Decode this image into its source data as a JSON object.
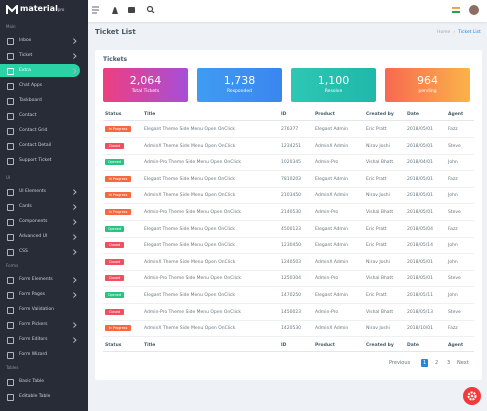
{
  "sidebar": {
    "logo": "material",
    "logo_sub": "pro",
    "active_color": "#2bd2a5",
    "sections": [
      {
        "label": "Main",
        "items": [
          {
            "label": "Inbox",
            "arrow": true
          },
          {
            "label": "Ticket",
            "arrow": true
          },
          {
            "label": "Extra",
            "arrow": true,
            "active": true
          },
          {
            "label": "Chat Apps",
            "arrow": false
          },
          {
            "label": "Taskboard",
            "arrow": false
          },
          {
            "label": "Contact",
            "arrow": false
          },
          {
            "label": "Contact Grid",
            "arrow": false
          },
          {
            "label": "Contact Detail",
            "arrow": false
          },
          {
            "label": "Support Ticket",
            "arrow": false
          }
        ]
      },
      {
        "label": "UI",
        "items": [
          {
            "label": "UI Elements",
            "arrow": true
          },
          {
            "label": "Cards",
            "arrow": true
          },
          {
            "label": "Components",
            "arrow": true
          },
          {
            "label": "Advanced UI",
            "arrow": true
          },
          {
            "label": "CSS",
            "arrow": true
          }
        ]
      },
      {
        "label": "Forms",
        "items": [
          {
            "label": "Form Elements",
            "arrow": true
          },
          {
            "label": "Form Pages",
            "arrow": true
          },
          {
            "label": "Form Validation",
            "arrow": false
          },
          {
            "label": "Form Pickers",
            "arrow": true
          },
          {
            "label": "Form Editors",
            "arrow": true
          },
          {
            "label": "Form Wizard",
            "arrow": false
          }
        ]
      },
      {
        "label": "Tables",
        "items": [
          {
            "label": "Basic Table",
            "arrow": false
          },
          {
            "label": "Editable Table",
            "arrow": false
          }
        ]
      }
    ]
  },
  "header": {
    "title": "Ticket List",
    "breadcrumb": [
      "Home",
      "Ticket List"
    ]
  },
  "card": {
    "title": "Tickets",
    "stats": [
      {
        "value": "2,064",
        "label": "Total Tickets",
        "colors": [
          "#ee3f7f",
          "#a64fd8"
        ]
      },
      {
        "value": "1,738",
        "label": "Responded",
        "colors": [
          "#3f9cf2",
          "#3a86ef"
        ]
      },
      {
        "value": "1,100",
        "label": "Resolve",
        "colors": [
          "#2ec7b4",
          "#1fb8aa"
        ]
      },
      {
        "value": "964",
        "label": "pending",
        "colors": [
          "#f8694f",
          "#fbb34a"
        ]
      }
    ],
    "table": {
      "columns": [
        "Status",
        "Title",
        "ID",
        "Product",
        "Created by",
        "Date",
        "Agent"
      ],
      "rows": [
        {
          "status": {
            "text": "In Progress",
            "color": "#f7683f"
          },
          "cells": [
            "Elegant Theme Side Menu Open OnClick",
            "276377",
            "Elegant Admin",
            "Eric Pratt",
            "2018/05/01",
            "Fazz"
          ]
        },
        {
          "status": {
            "text": "Closed",
            "color": "#ef4f5f"
          },
          "cells": [
            "AdminX Theme Side Menu Open OnClick",
            "1234251",
            "AdminX Admin",
            "Nirav Joshi",
            "2018/05/01",
            "Steve"
          ]
        },
        {
          "status": {
            "text": "Opened",
            "color": "#28c281"
          },
          "cells": [
            "Admin-Pro Theme Side Menu Open OnClick",
            "1020345",
            "Admin-Pro",
            "Vishal Bhatt",
            "2018/04/01",
            "John"
          ]
        },
        {
          "status": {
            "text": "In Progress",
            "color": "#f7683f"
          },
          "cells": [
            "Elegant Theme Side Menu Open OnClick",
            "7810203",
            "Elegant Admin",
            "Eric Pratt",
            "2018/05/01",
            "Fazz"
          ]
        },
        {
          "status": {
            "text": "In Progress",
            "color": "#f7683f"
          },
          "cells": [
            "AdminX Theme Side Menu Open OnClick",
            "2103450",
            "AdminX Admin",
            "Nirav Joshi",
            "2018/05/01",
            "John"
          ]
        },
        {
          "status": {
            "text": "In Progress",
            "color": "#f7683f"
          },
          "cells": [
            "Admin-Pro Theme Side Menu Open OnClick",
            "2140530",
            "Admin-Pro",
            "Vishal Bhatt",
            "2018/05/01",
            "Steve"
          ]
        },
        {
          "status": {
            "text": "Opened",
            "color": "#28c281"
          },
          "cells": [
            "Elegant Theme Side Menu Open OnClick",
            "4500123",
            "Elegant Admin",
            "Eric Pratt",
            "2018/05/04",
            "Fazz"
          ]
        },
        {
          "status": {
            "text": "Closed",
            "color": "#ef4f5f"
          },
          "cells": [
            "Elegant Theme Side Menu Open OnClick",
            "1230450",
            "Elegant Admin",
            "Eric Pratt",
            "2018/05/14",
            "John"
          ]
        },
        {
          "status": {
            "text": "Closed",
            "color": "#ef4f5f"
          },
          "cells": [
            "AdminX Theme Side Menu Open OnClick",
            "1240503",
            "AdminX Admin",
            "Nirav Joshi",
            "2018/05/01",
            "John"
          ]
        },
        {
          "status": {
            "text": "Closed",
            "color": "#ef4f5f"
          },
          "cells": [
            "Admin-Pro Theme Side Menu Open OnClick",
            "1250304",
            "Admin-Pro",
            "Vishal Bhatt",
            "2018/05/01",
            "Steve"
          ]
        },
        {
          "status": {
            "text": "Opened",
            "color": "#28c281"
          },
          "cells": [
            "Elegant Theme Side Menu Open OnClick",
            "1470250",
            "Elegant Admin",
            "Eric Pratt",
            "2018/05/11",
            "John"
          ]
        },
        {
          "status": {
            "text": "Closed",
            "color": "#ef4f5f"
          },
          "cells": [
            "Admin-Pro Theme Side Menu Open OnClick",
            "1450023",
            "Admin-Pro",
            "Vishal Bhatt",
            "2018/05/13",
            "Steve"
          ]
        },
        {
          "status": {
            "text": "In Progress",
            "color": "#f7683f"
          },
          "cells": [
            "AdminX Theme Side Menu Open OnClick",
            "1420530",
            "AdminX Admin",
            "Nirav Joshi",
            "2018/10/01",
            "Fazz"
          ]
        }
      ]
    }
  },
  "pagination": {
    "items": [
      "Previous",
      "1",
      "2",
      "3",
      "Next"
    ],
    "active": 1
  }
}
